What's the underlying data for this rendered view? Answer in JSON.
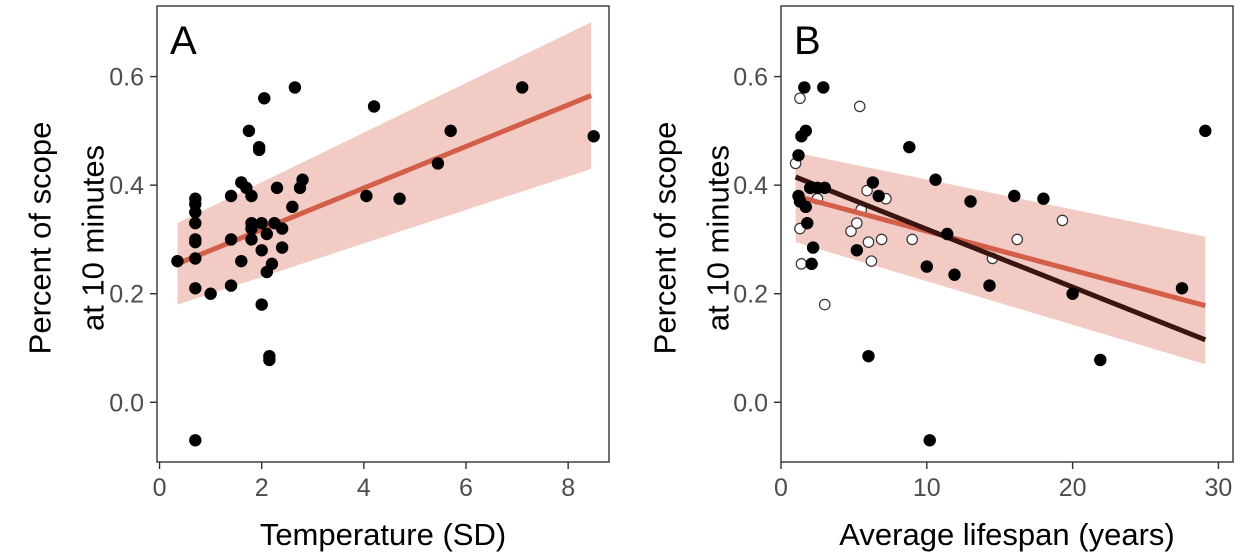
{
  "chart_data": [
    {
      "type": "scatter",
      "panel_label": "A",
      "xlabel": "Temperature (SD)",
      "ylabel": "Percent of scope at 10 minutes",
      "ylabel_lines": [
        "Percent of scope",
        "at 10 minutes"
      ],
      "xlim": [
        -0.05,
        8.8
      ],
      "ylim": [
        -0.11,
        0.73
      ],
      "x_ticks": [
        0,
        2,
        4,
        6,
        8
      ],
      "x_tick_labels": [
        "0",
        "2",
        "4",
        "6",
        "8"
      ],
      "y_ticks": [
        0.0,
        0.2,
        0.4,
        0.6
      ],
      "y_tick_labels": [
        "0.0",
        "0.2",
        "0.4",
        "0.6"
      ],
      "grid": false,
      "colors": {
        "points": "#000000",
        "fit": "#d45f48",
        "ribbon": "#f2cbc4"
      },
      "points": [
        [
          0.35,
          0.26
        ],
        [
          0.7,
          0.375
        ],
        [
          0.7,
          0.365
        ],
        [
          0.7,
          0.35
        ],
        [
          0.7,
          0.33
        ],
        [
          0.7,
          0.3
        ],
        [
          0.7,
          0.295
        ],
        [
          0.7,
          0.265
        ],
        [
          0.7,
          0.21
        ],
        [
          0.7,
          -0.07
        ],
        [
          1.0,
          0.2
        ],
        [
          1.4,
          0.38
        ],
        [
          1.4,
          0.3
        ],
        [
          1.4,
          0.215
        ],
        [
          1.6,
          0.405
        ],
        [
          1.6,
          0.26
        ],
        [
          1.7,
          0.395
        ],
        [
          1.75,
          0.5
        ],
        [
          1.8,
          0.38
        ],
        [
          1.8,
          0.33
        ],
        [
          1.8,
          0.32
        ],
        [
          1.8,
          0.3
        ],
        [
          1.95,
          0.465
        ],
        [
          1.95,
          0.47
        ],
        [
          2.0,
          0.33
        ],
        [
          2.0,
          0.28
        ],
        [
          2.0,
          0.18
        ],
        [
          2.05,
          0.56
        ],
        [
          2.1,
          0.31
        ],
        [
          2.1,
          0.24
        ],
        [
          2.15,
          0.085
        ],
        [
          2.15,
          0.078
        ],
        [
          2.2,
          0.255
        ],
        [
          2.25,
          0.33
        ],
        [
          2.3,
          0.395
        ],
        [
          2.4,
          0.32
        ],
        [
          2.4,
          0.285
        ],
        [
          2.6,
          0.36
        ],
        [
          2.65,
          0.58
        ],
        [
          2.75,
          0.395
        ],
        [
          2.8,
          0.41
        ],
        [
          4.05,
          0.38
        ],
        [
          4.2,
          0.545
        ],
        [
          4.7,
          0.375
        ],
        [
          5.45,
          0.44
        ],
        [
          5.7,
          0.5
        ],
        [
          7.1,
          0.58
        ],
        [
          8.5,
          0.49
        ]
      ],
      "open_points": [],
      "fits": [
        {
          "color": "#d45f48",
          "x": [
            0.35,
            8.45
          ],
          "y": [
            0.255,
            0.565
          ]
        }
      ],
      "ribbon": {
        "x": [
          0.35,
          8.45
        ],
        "upper": [
          0.33,
          0.7
        ],
        "lower": [
          0.18,
          0.43
        ]
      }
    },
    {
      "type": "scatter",
      "panel_label": "B",
      "xlabel": "Average lifespan (years)",
      "ylabel": "Percent of scope at 10 minutes",
      "ylabel_lines": [
        "Percent of scope",
        "at 10 minutes"
      ],
      "xlim": [
        0,
        31
      ],
      "ylim": [
        -0.11,
        0.73
      ],
      "x_ticks": [
        0,
        10,
        20,
        30
      ],
      "x_tick_labels": [
        "0",
        "10",
        "20",
        "30"
      ],
      "y_ticks": [
        0.0,
        0.2,
        0.4,
        0.6
      ],
      "y_tick_labels": [
        "0.0",
        "0.2",
        "0.4",
        "0.6"
      ],
      "grid": false,
      "colors": {
        "points": "#000000",
        "fit_overall": "#d45f48",
        "fit_filled": "#3a1410",
        "ribbon": "#f2cbc4"
      },
      "points": [
        [
          1.2,
          0.455
        ],
        [
          1.2,
          0.38
        ],
        [
          1.3,
          0.37
        ],
        [
          1.4,
          0.49
        ],
        [
          1.6,
          0.58
        ],
        [
          1.7,
          0.5
        ],
        [
          1.7,
          0.36
        ],
        [
          1.8,
          0.33
        ],
        [
          2.0,
          0.395
        ],
        [
          2.1,
          0.255
        ],
        [
          2.2,
          0.285
        ],
        [
          2.5,
          0.395
        ],
        [
          2.9,
          0.58
        ],
        [
          3.0,
          0.395
        ],
        [
          5.2,
          0.28
        ],
        [
          6.0,
          0.085
        ],
        [
          6.3,
          0.405
        ],
        [
          6.7,
          0.38
        ],
        [
          8.8,
          0.47
        ],
        [
          10.0,
          0.25
        ],
        [
          10.2,
          -0.07
        ],
        [
          10.6,
          0.41
        ],
        [
          11.4,
          0.31
        ],
        [
          11.9,
          0.235
        ],
        [
          13.0,
          0.37
        ],
        [
          14.3,
          0.215
        ],
        [
          16.0,
          0.38
        ],
        [
          18.0,
          0.375
        ],
        [
          20.0,
          0.2
        ],
        [
          21.9,
          0.078
        ],
        [
          27.5,
          0.21
        ],
        [
          29.1,
          0.5
        ]
      ],
      "open_points": [
        [
          1.0,
          0.44
        ],
        [
          1.3,
          0.56
        ],
        [
          1.3,
          0.32
        ],
        [
          1.4,
          0.255
        ],
        [
          2.5,
          0.375
        ],
        [
          3.0,
          0.18
        ],
        [
          4.8,
          0.315
        ],
        [
          5.2,
          0.33
        ],
        [
          5.4,
          0.545
        ],
        [
          5.5,
          0.355
        ],
        [
          5.9,
          0.39
        ],
        [
          6.0,
          0.295
        ],
        [
          6.2,
          0.26
        ],
        [
          6.9,
          0.3
        ],
        [
          7.2,
          0.375
        ],
        [
          9.0,
          0.3
        ],
        [
          14.5,
          0.265
        ],
        [
          16.2,
          0.3
        ],
        [
          19.3,
          0.335
        ]
      ],
      "fits": [
        {
          "color": "#d45f48",
          "x": [
            1.0,
            29.1
          ],
          "y": [
            0.38,
            0.178
          ]
        },
        {
          "color": "#3a1410",
          "x": [
            1.0,
            29.1
          ],
          "y": [
            0.415,
            0.115
          ]
        }
      ],
      "ribbon": {
        "x": [
          1.0,
          29.1
        ],
        "upper": [
          0.46,
          0.305
        ],
        "lower": [
          0.295,
          0.07
        ]
      }
    }
  ]
}
